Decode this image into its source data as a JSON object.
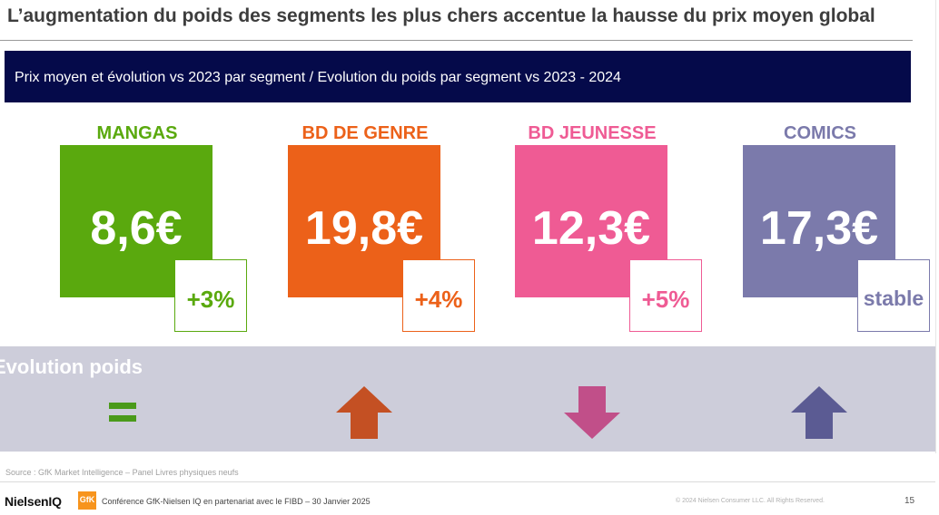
{
  "title": "L’augmentation du poids des segments les plus chers accentue la hausse du prix moyen global",
  "banner": "Prix moyen et évolution vs 2023 par segment / Evolution du poids par segment vs 2023 - 2024",
  "segments": [
    {
      "label": "MANGAS",
      "price": "8,6€",
      "change": "+3%",
      "color": "#5aa90e",
      "weight_trend": "equal"
    },
    {
      "label": "BD DE GENRE",
      "price": "19,8€",
      "change": "+4%",
      "color": "#ec6119",
      "weight_trend": "up"
    },
    {
      "label": "BD JEUNESSE",
      "price": "12,3€",
      "change": "+5%",
      "color": "#ef5b94",
      "weight_trend": "down"
    },
    {
      "label": "COMICS",
      "price": "17,3€",
      "change": "stable",
      "color": "#7b7aab",
      "weight_trend": "up"
    }
  ],
  "band": {
    "label": "Evolution poids",
    "icons": [
      {
        "name": "equals-icon",
        "color": "#4a9a1a"
      },
      {
        "name": "arrow-up-icon",
        "color": "#c45023"
      },
      {
        "name": "arrow-down-icon",
        "color": "#c14f89"
      },
      {
        "name": "arrow-up-icon",
        "color": "#5b5b93"
      }
    ]
  },
  "footer": {
    "source": "Source : GfK Market Intelligence – Panel Livres physiques neufs",
    "logo_nielseniq": "NielsenIQ",
    "logo_gfk": "GfK",
    "conference": "Conférence GfK-Nielsen IQ en partenariat avec le FIBD – 30 Janvier 2025",
    "copyright": "© 2024 Nielsen Consumer LLC. All Rights Reserved.",
    "page_number": "15"
  }
}
